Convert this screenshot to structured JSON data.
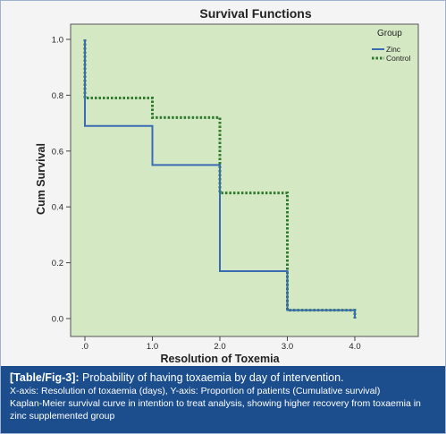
{
  "chart_data": {
    "type": "line",
    "title": "Survival Functions",
    "xlabel": "Resolution of Toxemia",
    "ylabel": "Cum Survival",
    "xlim": [
      0,
      4
    ],
    "ylim": [
      0,
      1
    ],
    "x_ticks": [
      ".0",
      "1.0",
      "2.0",
      "3.0",
      "4.0"
    ],
    "y_ticks": [
      "0.0",
      "0.2",
      "0.4",
      "0.6",
      "0.8",
      "1.0"
    ],
    "legend_title": "Group",
    "legend_position": "top-right",
    "grid": false,
    "background_color": "#d5e8c4",
    "series": [
      {
        "name": "Zinc",
        "color": "#3a6bb3",
        "style": "solid",
        "steps": [
          [
            0,
            1.0
          ],
          [
            0,
            0.69
          ],
          [
            1,
            0.69
          ],
          [
            1,
            0.55
          ],
          [
            2,
            0.55
          ],
          [
            2,
            0.17
          ],
          [
            3,
            0.17
          ],
          [
            3,
            0.03
          ],
          [
            4,
            0.03
          ],
          [
            4,
            0.0
          ]
        ]
      },
      {
        "name": "Control",
        "color": "#2e7a2e",
        "style": "dotted",
        "steps": [
          [
            0,
            1.0
          ],
          [
            0,
            0.79
          ],
          [
            1,
            0.79
          ],
          [
            1,
            0.72
          ],
          [
            2,
            0.72
          ],
          [
            2,
            0.45
          ],
          [
            3,
            0.45
          ],
          [
            3,
            0.03
          ],
          [
            4,
            0.03
          ],
          [
            4,
            0.0
          ]
        ]
      }
    ]
  },
  "caption": {
    "tag": "[Table/Fig-3]:",
    "title": " Probability of having toxaemia by day of intervention.",
    "axes": "X-axis: Resolution of toxaemia (days), Y-axis: Proportion of patients (Cumulative survival)",
    "description": "Kaplan-Meier survival curve in intention to treat analysis, showing higher recovery from toxaemia in zinc supplemented group"
  }
}
